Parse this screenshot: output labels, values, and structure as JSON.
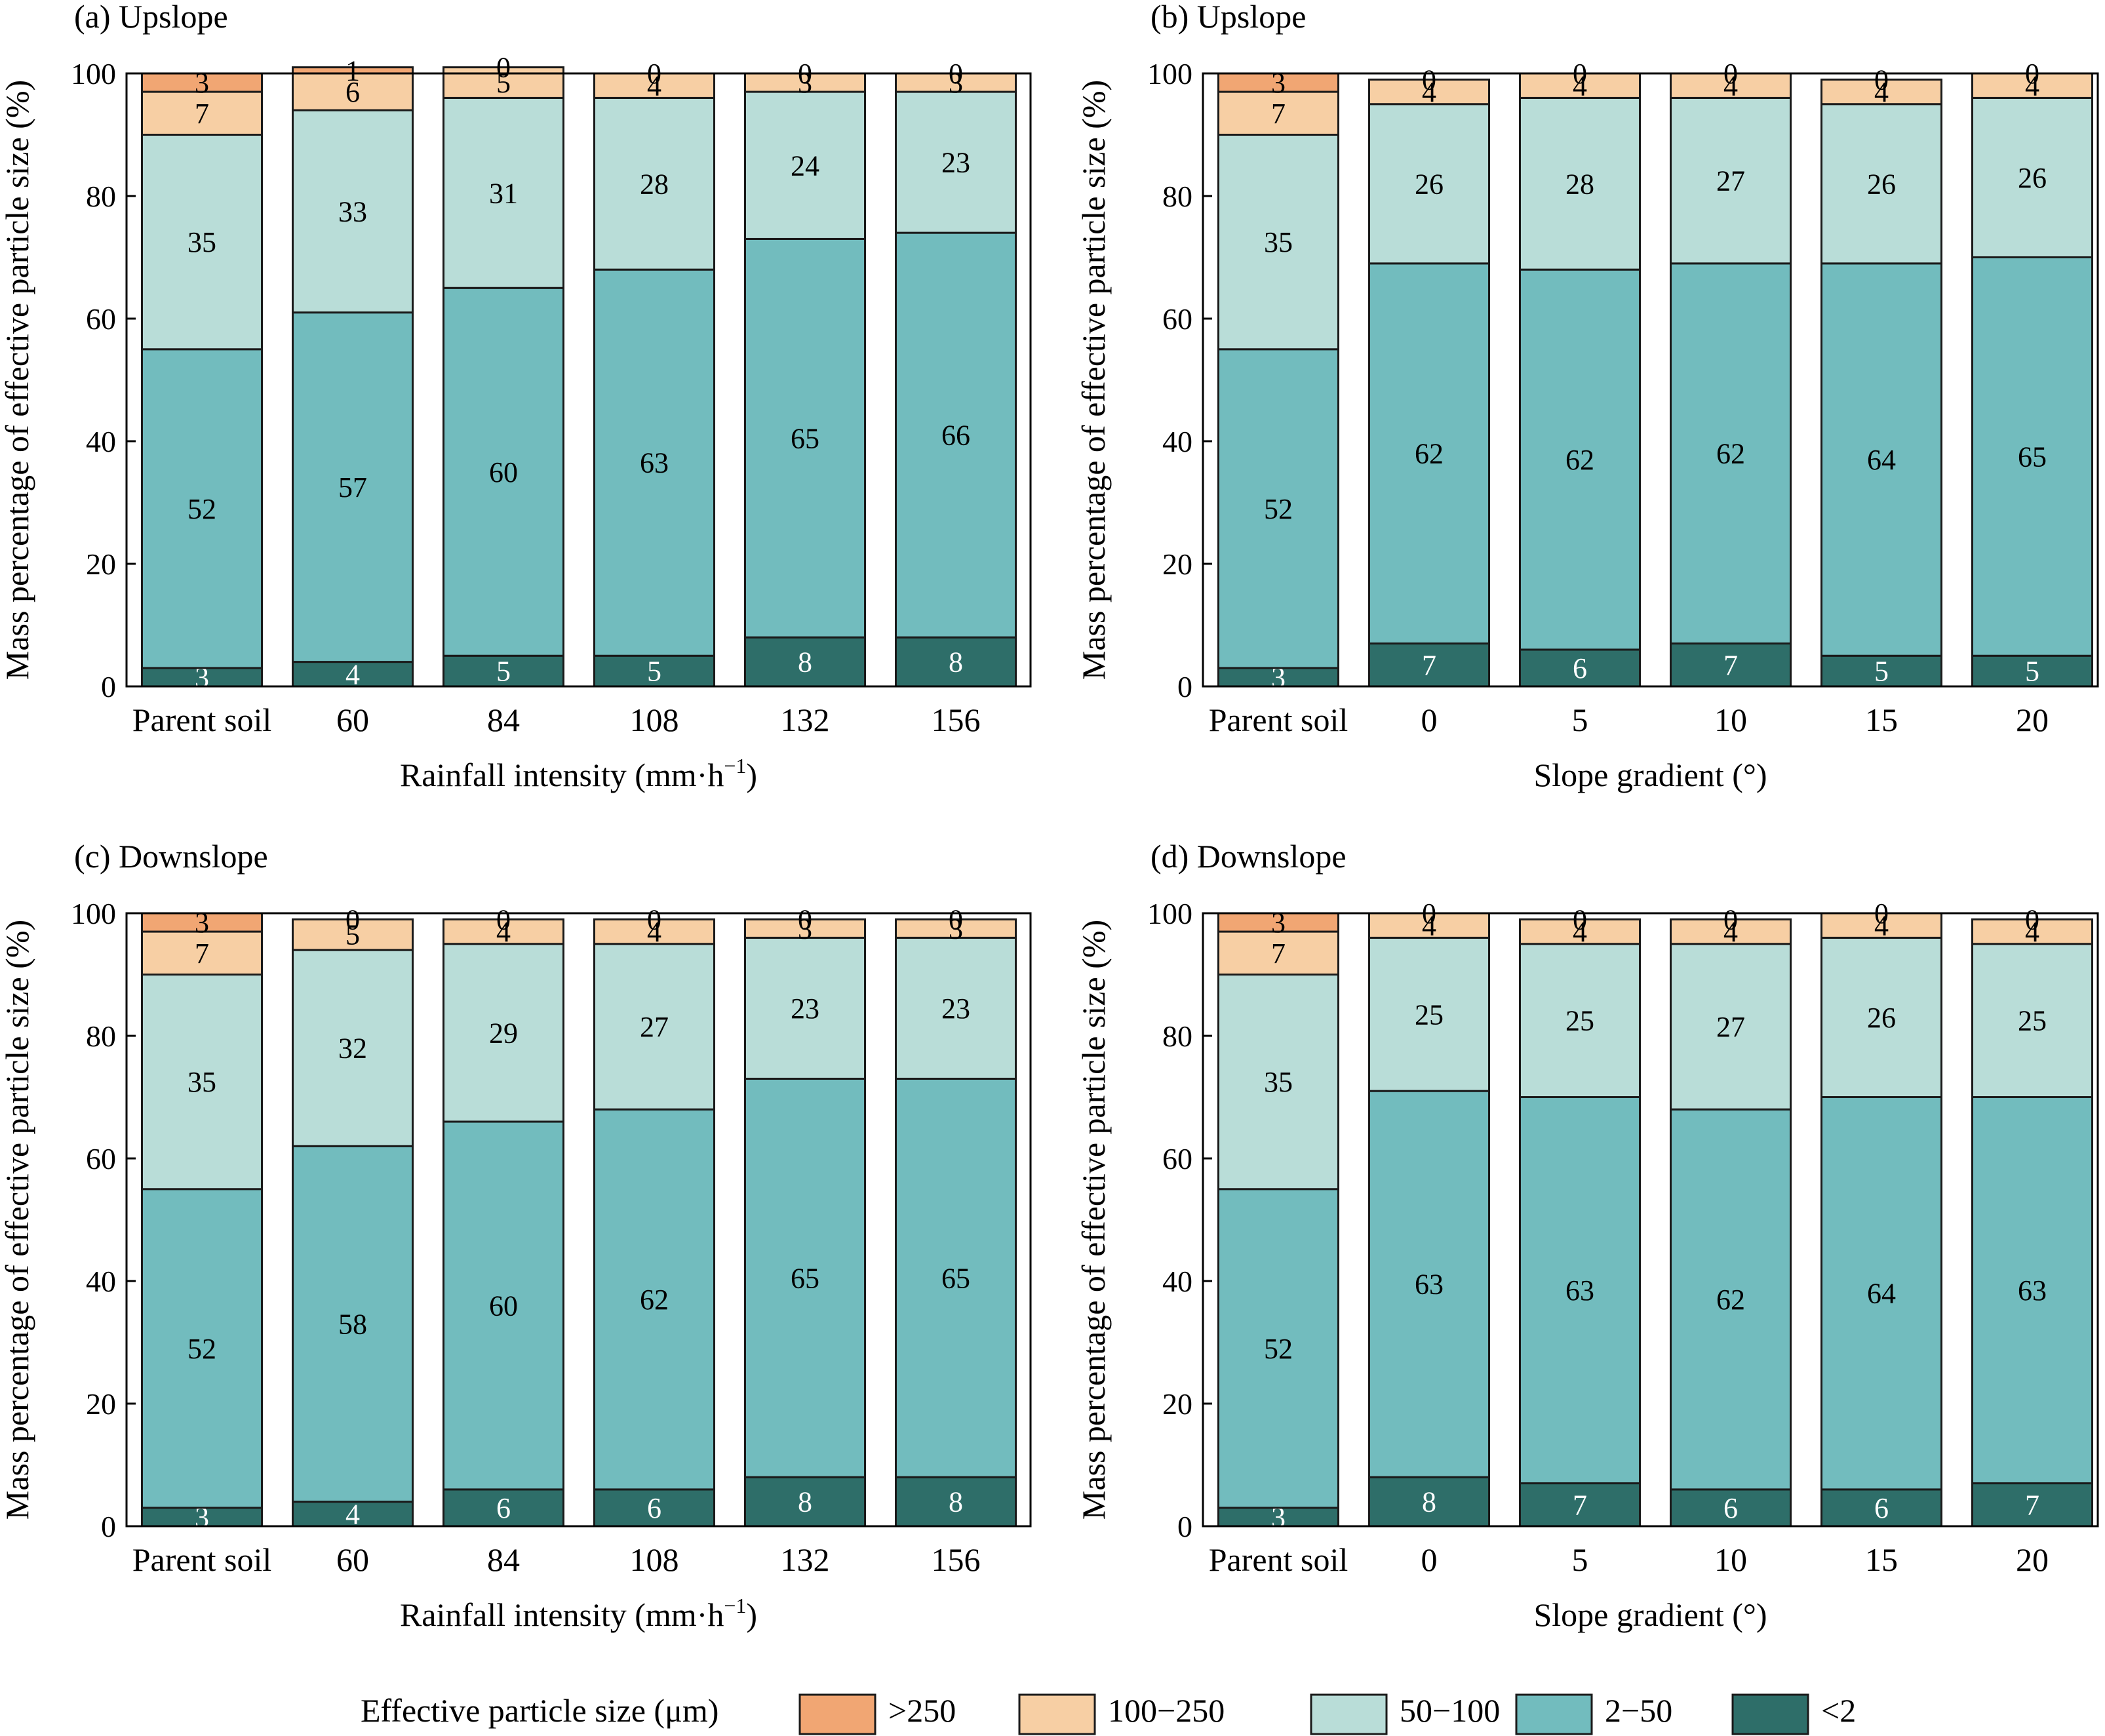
{
  "colors": {
    ">250": "#f1a673",
    "100-250": "#f7cfa4",
    "50-100": "#b9ddd8",
    "2-50": "#72bcbe",
    "<2": "#2e6e69"
  },
  "legend": {
    "title": "Effective particle size (μm)",
    "entries": [
      ">250",
      "100−250",
      "50−100",
      "2−50",
      "<2"
    ]
  },
  "chart_data": [
    {
      "type": "bar",
      "stacked": true,
      "title": "(a) Upslope",
      "xlabel": "Rainfall intensity (mm·h",
      "xlabel_sup": "−1",
      "xlabel_end": ")",
      "ylabel": "Mass percentage of effective particle size (%)",
      "ylim": [
        0,
        100
      ],
      "yticks": [
        0,
        20,
        40,
        60,
        80,
        100
      ],
      "categories": [
        "Parent soil",
        "60",
        "84",
        "108",
        "132",
        "156"
      ],
      "series": [
        {
          "key": "<2",
          "values": [
            3,
            4,
            5,
            5,
            8,
            8
          ]
        },
        {
          "key": "2-50",
          "values": [
            52,
            57,
            60,
            63,
            65,
            66
          ]
        },
        {
          "key": "50-100",
          "values": [
            35,
            33,
            31,
            28,
            24,
            23
          ]
        },
        {
          "key": "100-250",
          "values": [
            7,
            6,
            5,
            4,
            3,
            3
          ]
        },
        {
          "key": ">250",
          "values": [
            3,
            1,
            0,
            0,
            0,
            0
          ]
        }
      ],
      "grid": false
    },
    {
      "type": "bar",
      "stacked": true,
      "title": "(b) Upslope",
      "xlabel": "Slope gradient (°)",
      "xlabel_sup": "",
      "xlabel_end": "",
      "ylabel": "Mass percentage of effective particle size (%)",
      "ylim": [
        0,
        100
      ],
      "yticks": [
        0,
        20,
        40,
        60,
        80,
        100
      ],
      "categories": [
        "Parent soil",
        "0",
        "5",
        "10",
        "15",
        "20"
      ],
      "series": [
        {
          "key": "<2",
          "values": [
            3,
            7,
            6,
            7,
            5,
            5
          ]
        },
        {
          "key": "2-50",
          "values": [
            52,
            62,
            62,
            62,
            64,
            65
          ]
        },
        {
          "key": "50-100",
          "values": [
            35,
            26,
            28,
            27,
            26,
            26
          ]
        },
        {
          "key": "100-250",
          "values": [
            7,
            4,
            4,
            4,
            4,
            4
          ]
        },
        {
          "key": ">250",
          "values": [
            3,
            0,
            0,
            0,
            0,
            0
          ]
        }
      ],
      "grid": false
    },
    {
      "type": "bar",
      "stacked": true,
      "title": "(c) Downslope",
      "xlabel": "Rainfall intensity (mm·h",
      "xlabel_sup": "−1",
      "xlabel_end": ")",
      "ylabel": "Mass percentage of effective particle size (%)",
      "ylim": [
        0,
        100
      ],
      "yticks": [
        0,
        20,
        40,
        60,
        80,
        100
      ],
      "categories": [
        "Parent soil",
        "60",
        "84",
        "108",
        "132",
        "156"
      ],
      "series": [
        {
          "key": "<2",
          "values": [
            3,
            4,
            6,
            6,
            8,
            8
          ]
        },
        {
          "key": "2-50",
          "values": [
            52,
            58,
            60,
            62,
            65,
            65
          ]
        },
        {
          "key": "50-100",
          "values": [
            35,
            32,
            29,
            27,
            23,
            23
          ]
        },
        {
          "key": "100-250",
          "values": [
            7,
            5,
            4,
            4,
            3,
            3
          ]
        },
        {
          "key": ">250",
          "values": [
            3,
            0,
            0,
            0,
            0,
            0
          ]
        }
      ],
      "grid": false
    },
    {
      "type": "bar",
      "stacked": true,
      "title": "(d) Downslope",
      "xlabel": "Slope gradient (°)",
      "xlabel_sup": "",
      "xlabel_end": "",
      "ylabel": "Mass percentage of effective particle size (%)",
      "ylim": [
        0,
        100
      ],
      "yticks": [
        0,
        20,
        40,
        60,
        80,
        100
      ],
      "categories": [
        "Parent soil",
        "0",
        "5",
        "10",
        "15",
        "20"
      ],
      "series": [
        {
          "key": "<2",
          "values": [
            3,
            8,
            7,
            6,
            6,
            7
          ]
        },
        {
          "key": "2-50",
          "values": [
            52,
            63,
            63,
            62,
            64,
            63
          ]
        },
        {
          "key": "50-100",
          "values": [
            35,
            25,
            25,
            27,
            26,
            25
          ]
        },
        {
          "key": "100-250",
          "values": [
            7,
            4,
            4,
            4,
            4,
            4
          ]
        },
        {
          "key": ">250",
          "values": [
            3,
            0,
            0,
            0,
            0,
            0
          ]
        }
      ],
      "grid": false
    }
  ]
}
